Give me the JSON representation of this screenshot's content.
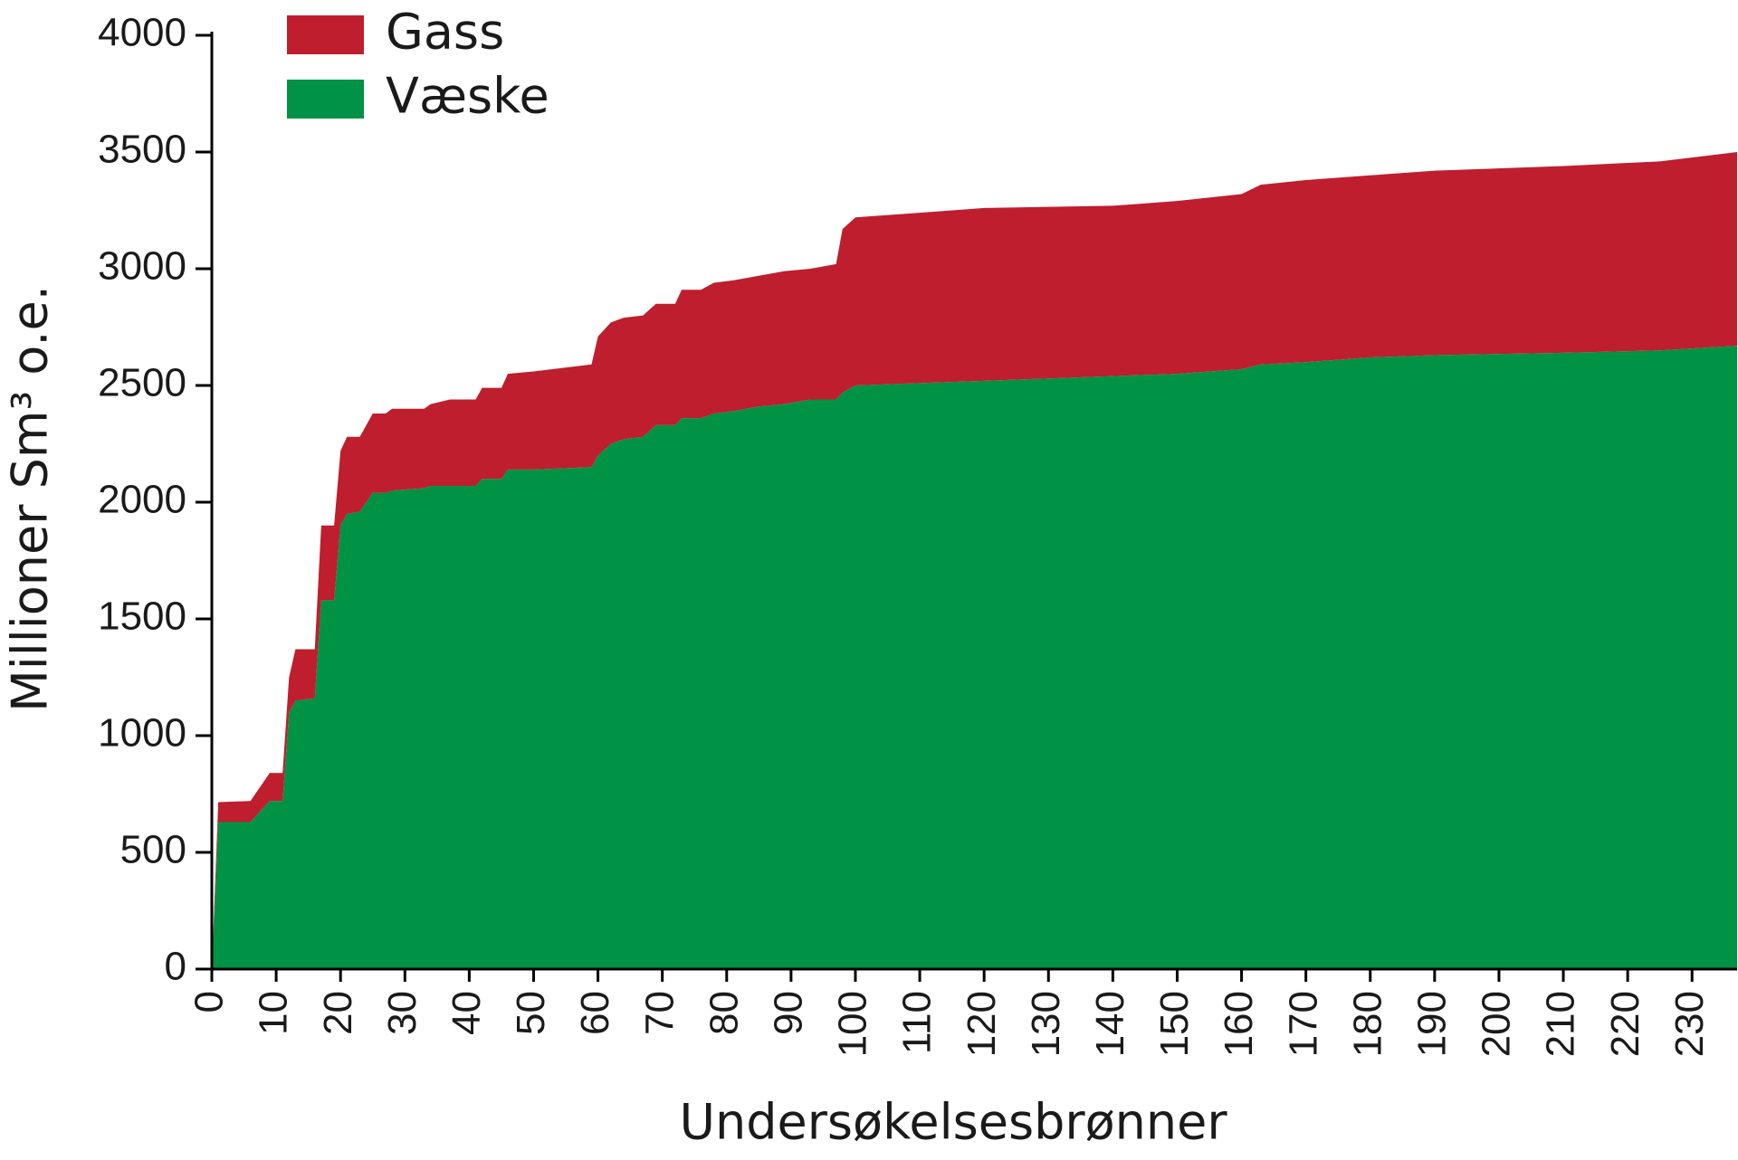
{
  "chart_data": {
    "type": "stacked_area",
    "xlabel": "Undersøkelsesbrønner",
    "ylabel": "Millioner Sm³ o.e.",
    "x": [
      0,
      1,
      6,
      9,
      11,
      12,
      13,
      16,
      17,
      19,
      20,
      21,
      23,
      25,
      27,
      28,
      33,
      34,
      37,
      41,
      42,
      45,
      46,
      50,
      59,
      60,
      62,
      64,
      67,
      69,
      72,
      73,
      76,
      78,
      81,
      85,
      89,
      93,
      97,
      98,
      100,
      110,
      120,
      140,
      150,
      160,
      163,
      170,
      180,
      190,
      210,
      225,
      237
    ],
    "series": [
      {
        "name": "Væske",
        "color": "#009245",
        "values": [
          0,
          630,
          630,
          720,
          720,
          1100,
          1150,
          1160,
          1580,
          1580,
          1900,
          1950,
          1960,
          2040,
          2040,
          2050,
          2060,
          2070,
          2070,
          2070,
          2100,
          2100,
          2140,
          2140,
          2150,
          2200,
          2250,
          2270,
          2280,
          2330,
          2330,
          2360,
          2360,
          2380,
          2390,
          2410,
          2420,
          2440,
          2440,
          2470,
          2500,
          2510,
          2520,
          2540,
          2550,
          2570,
          2590,
          2600,
          2620,
          2630,
          2640,
          2650,
          2670
        ]
      },
      {
        "name": "Gass",
        "color": "#be1e2d",
        "values": [
          0,
          85,
          90,
          120,
          120,
          150,
          220,
          210,
          320,
          320,
          320,
          330,
          320,
          340,
          340,
          350,
          340,
          350,
          370,
          370,
          390,
          390,
          410,
          420,
          440,
          510,
          520,
          520,
          520,
          520,
          520,
          550,
          550,
          560,
          560,
          560,
          570,
          560,
          580,
          700,
          720,
          730,
          740,
          730,
          740,
          750,
          770,
          780,
          780,
          790,
          800,
          810,
          830
        ]
      }
    ],
    "xlim": [
      0,
      237
    ],
    "xticks": [
      0,
      10,
      20,
      30,
      40,
      50,
      60,
      70,
      80,
      90,
      100,
      110,
      120,
      130,
      140,
      150,
      160,
      170,
      180,
      190,
      200,
      210,
      220,
      230
    ],
    "ylim": [
      0,
      4000
    ],
    "yticks": [
      0,
      500,
      1000,
      1500,
      2000,
      2500,
      3000,
      3500,
      4000
    ],
    "legend": "top-left"
  }
}
